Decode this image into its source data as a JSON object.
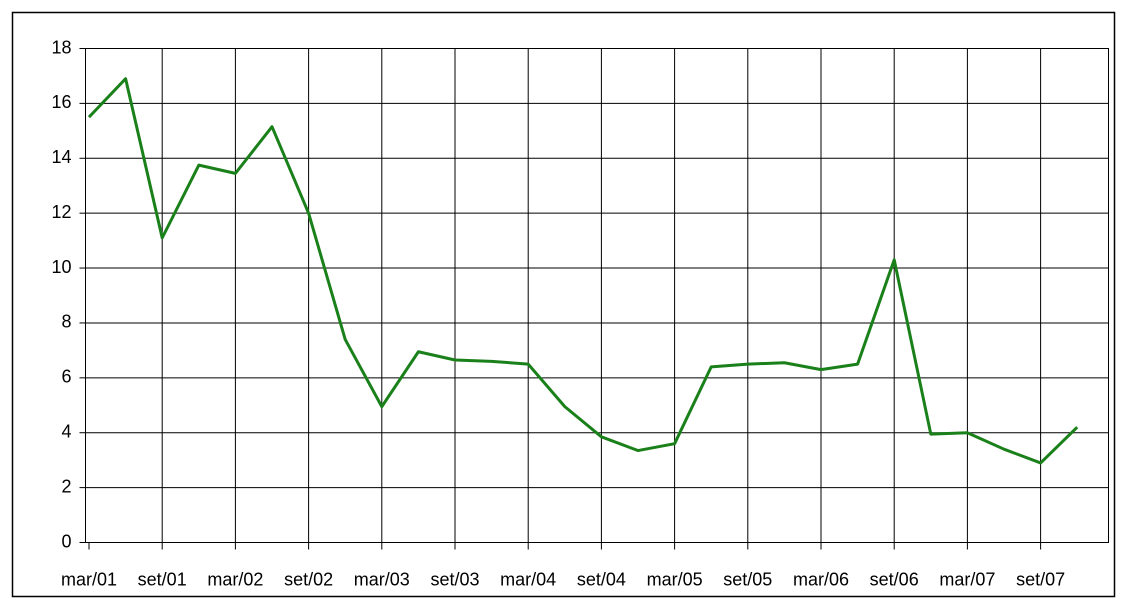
{
  "chart_data": {
    "type": "line",
    "categories": [
      "mar/01",
      null,
      "set/01",
      null,
      "mar/02",
      null,
      "set/02",
      null,
      "mar/03",
      null,
      "set/03",
      null,
      "mar/04",
      null,
      "set/04",
      null,
      "mar/05",
      null,
      "set/05",
      null,
      "mar/06",
      null,
      "set/06",
      null,
      "mar/07",
      null,
      "set/07",
      null
    ],
    "series": [
      {
        "color": "#1a801a",
        "values": [
          15.5,
          16.9,
          11.1,
          13.75,
          13.45,
          15.15,
          12.0,
          7.4,
          4.95,
          6.95,
          6.65,
          6.6,
          6.5,
          4.95,
          3.85,
          3.35,
          3.6,
          6.4,
          6.5,
          6.55,
          6.3,
          6.5,
          10.3,
          3.95,
          4.0,
          3.4,
          2.9,
          4.2
        ]
      }
    ],
    "ylim": [
      0,
      18
    ],
    "yticks": [
      0,
      2,
      4,
      6,
      8,
      10,
      12,
      14,
      16,
      18
    ],
    "grid": true
  }
}
